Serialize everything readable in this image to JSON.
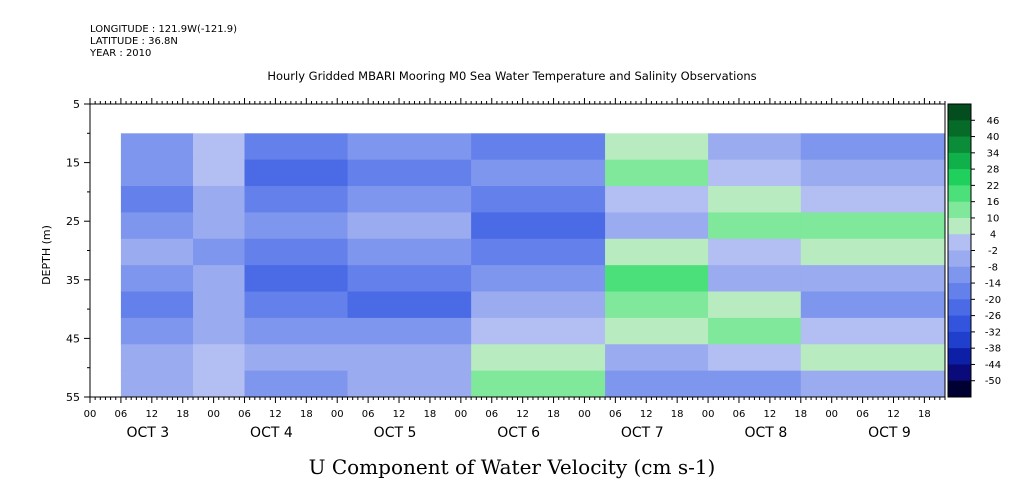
{
  "header": {
    "longitude": "LONGITUDE : 121.9W(-121.9)",
    "latitude": "LATITUDE : 36.8N",
    "year": "YEAR : 2010"
  },
  "chart_data": {
    "type": "heatmap",
    "title": "Hourly Gridded MBARI Mooring M0 Sea Water Temperature and Salinity Observations",
    "xlabel": "U Component of Water Velocity (cm s-1)",
    "ylabel": "DEPTH (m)",
    "ylim": [
      55,
      5
    ],
    "y_ticks": [
      5,
      15,
      25,
      35,
      45,
      55
    ],
    "x_hour_range": [
      0,
      166
    ],
    "x_hour_labels": [
      "00",
      "06",
      "12",
      "18",
      "00",
      "06",
      "12",
      "18",
      "00",
      "06",
      "12",
      "18",
      "00",
      "06",
      "12",
      "18",
      "00",
      "06",
      "12",
      "18",
      "00",
      "06",
      "12",
      "18",
      "00",
      "06",
      "12",
      "18"
    ],
    "x_day_labels": [
      "OCT  3",
      "OCT  4",
      "OCT  5",
      "OCT  6",
      "OCT  7",
      "OCT  8",
      "OCT  9"
    ],
    "data_depth_range": [
      10,
      55
    ],
    "data_hour_range": [
      6,
      166
    ],
    "colorbar": {
      "levels": [
        "46",
        "40",
        "34",
        "28",
        "22",
        "16",
        "10",
        "4",
        "-2",
        "-8",
        "-14",
        "-20",
        "-26",
        "-32",
        "-38",
        "-44",
        "-50"
      ],
      "min": -50,
      "max": 50,
      "colors": [
        "#000033",
        "#0a0a7a",
        "#0d1fa6",
        "#1f3fcc",
        "#3355dd",
        "#4a6ae6",
        "#6480ea",
        "#7f96ee",
        "#9aabf0",
        "#b3bff3",
        "#b8ecc0",
        "#7fe89a",
        "#4be07a",
        "#1fd05c",
        "#10b04a",
        "#0a8c38",
        "#066a29",
        "#044d1e"
      ],
      "bands": [
        {
          "from": 6,
          "to": 20,
          "values": [
            -8,
            -8,
            -14,
            -8,
            -2,
            -8,
            -14,
            -8,
            -2,
            -2
          ]
        },
        {
          "from": 20,
          "to": 30,
          "values": [
            4,
            4,
            -2,
            -2,
            -8,
            -2,
            -2,
            -2,
            4,
            4
          ]
        },
        {
          "from": 30,
          "to": 50,
          "values": [
            -14,
            -20,
            -14,
            -8,
            -14,
            -20,
            -14,
            -8,
            -2,
            -8
          ]
        },
        {
          "from": 50,
          "to": 74,
          "values": [
            -8,
            -14,
            -8,
            -2,
            -8,
            -14,
            -20,
            -8,
            -2,
            -2
          ]
        },
        {
          "from": 74,
          "to": 100,
          "values": [
            -14,
            -8,
            -14,
            -20,
            -14,
            -8,
            -2,
            4,
            10,
            16
          ]
        },
        {
          "from": 100,
          "to": 120,
          "values": [
            10,
            16,
            4,
            -2,
            10,
            22,
            16,
            10,
            -2,
            -8
          ]
        },
        {
          "from": 120,
          "to": 138,
          "values": [
            -2,
            4,
            10,
            16,
            4,
            -2,
            10,
            16,
            4,
            -8
          ]
        },
        {
          "from": 138,
          "to": 166,
          "values": [
            -8,
            -2,
            4,
            16,
            10,
            -2,
            -8,
            4,
            10,
            -2
          ]
        }
      ]
    }
  }
}
